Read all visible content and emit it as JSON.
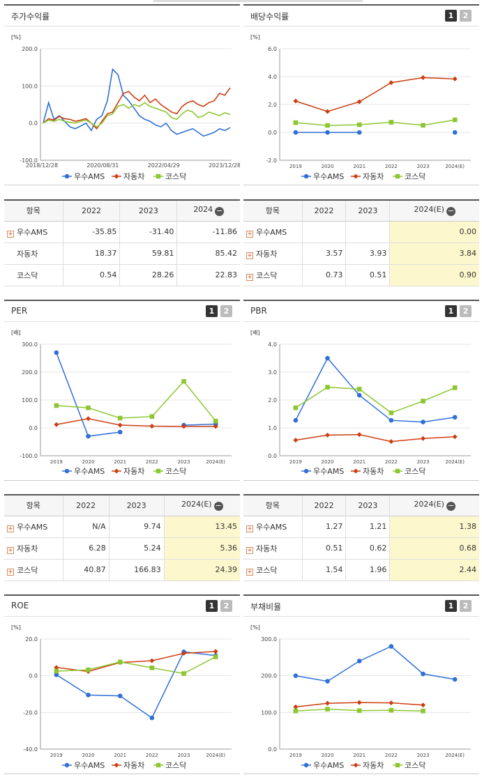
{
  "colors": {
    "ams": "#2f6fd6",
    "auto": "#cc3d10",
    "kosdaq": "#8cc630"
  },
  "legend": [
    "우수AMS",
    "자동차",
    "코스닥"
  ],
  "pagers": [
    "1",
    "2"
  ],
  "charts": {
    "price": {
      "title": "주가수익률",
      "unit": "[%]",
      "ylim": [
        -100,
        200
      ],
      "yticks": [
        "200.0",
        "100.0",
        "0.0",
        "-100.0"
      ],
      "xticks": [
        "2018/12/28",
        "2020/08/31",
        "2022/04/29",
        "2023/12/28"
      ]
    },
    "dividend": {
      "title": "배당수익률",
      "unit": "[%]",
      "ylim": [
        -2,
        6
      ],
      "yticks": [
        "6.0",
        "4.0",
        "2.0",
        "0.0",
        "-2.0"
      ],
      "xticks": [
        "2019",
        "2020",
        "2021",
        "2022",
        "2023",
        "2024(E)"
      ]
    },
    "per": {
      "title": "PER",
      "unit": "[배]",
      "ylim": [
        -100,
        300
      ],
      "yticks": [
        "300.0",
        "200.0",
        "100.0",
        "0.0",
        "-100.0"
      ],
      "xticks": [
        "2019",
        "2020",
        "2021",
        "2022",
        "2023",
        "2024(E)"
      ]
    },
    "pbr": {
      "title": "PBR",
      "unit": "[배]",
      "ylim": [
        0,
        4
      ],
      "yticks": [
        "4.0",
        "3.0",
        "2.0",
        "1.0",
        "0.0"
      ],
      "xticks": [
        "2019",
        "2020",
        "2021",
        "2022",
        "2023",
        "2024(E)"
      ]
    },
    "roe": {
      "title": "ROE",
      "unit": "[%]",
      "ylim": [
        -40,
        20
      ],
      "yticks": [
        "20.0",
        "0.0",
        "-20.0",
        "-40.0"
      ],
      "xticks": [
        "2019",
        "2020",
        "2021",
        "2022",
        "2023",
        "2024(E)"
      ]
    },
    "debt": {
      "title": "부채비율",
      "unit": "[%]",
      "ylim": [
        0,
        300
      ],
      "yticks": [
        "300.0",
        "200.0",
        "100.0",
        "0.0"
      ],
      "xticks": [
        "2019",
        "2020",
        "2021",
        "2022",
        "2023",
        "2024(E)"
      ]
    }
  },
  "chart_data": [
    {
      "type": "line",
      "title": "주가수익률",
      "ylabel": "[%]",
      "ylim": [
        -100,
        200
      ],
      "x_range": [
        "2018/12/28",
        "2024/06"
      ],
      "series": [
        {
          "name": "우수AMS",
          "values": [
            0,
            55,
            10,
            20,
            5,
            -10,
            -15,
            -8,
            0,
            -20,
            10,
            20,
            60,
            145,
            130,
            75,
            60,
            40,
            20,
            10,
            5,
            -5,
            -10,
            0,
            -20,
            -30,
            -25,
            -20,
            -15,
            -25,
            -35,
            -30,
            -25,
            -15,
            -20,
            -12
          ]
        },
        {
          "name": "자동차",
          "values": [
            0,
            12,
            8,
            18,
            12,
            10,
            5,
            8,
            12,
            0,
            -15,
            5,
            25,
            30,
            55,
            80,
            85,
            70,
            60,
            75,
            55,
            65,
            50,
            40,
            30,
            25,
            45,
            55,
            60,
            50,
            45,
            55,
            60,
            80,
            75,
            95
          ]
        },
        {
          "name": "코스닥",
          "values": [
            0,
            8,
            5,
            10,
            5,
            2,
            0,
            5,
            8,
            0,
            -10,
            0,
            20,
            25,
            45,
            50,
            40,
            50,
            45,
            55,
            45,
            40,
            35,
            30,
            15,
            10,
            25,
            35,
            30,
            15,
            20,
            30,
            25,
            20,
            28,
            23
          ]
        }
      ]
    },
    {
      "type": "line",
      "title": "배당수익률",
      "ylabel": "[%]",
      "ylim": [
        -2,
        6
      ],
      "categories": [
        "2019",
        "2020",
        "2021",
        "2022",
        "2023",
        "2024(E)"
      ],
      "series": [
        {
          "name": "우수AMS",
          "values": [
            0,
            0,
            0,
            null,
            null,
            0
          ]
        },
        {
          "name": "자동차",
          "values": [
            2.25,
            1.5,
            2.2,
            3.57,
            3.93,
            3.84
          ]
        },
        {
          "name": "코스닥",
          "values": [
            0.7,
            0.5,
            0.55,
            0.73,
            0.51,
            0.9
          ]
        }
      ]
    },
    {
      "type": "line",
      "title": "PER",
      "ylabel": "[배]",
      "ylim": [
        -100,
        300
      ],
      "categories": [
        "2019",
        "2020",
        "2021",
        "2022",
        "2023",
        "2024(E)"
      ],
      "series": [
        {
          "name": "우수AMS",
          "values": [
            270,
            -30,
            -15,
            null,
            9.74,
            13.45
          ]
        },
        {
          "name": "자동차",
          "values": [
            12,
            33,
            10,
            6.28,
            5.24,
            5.36
          ]
        },
        {
          "name": "코스닥",
          "values": [
            80,
            72,
            35,
            40.87,
            166.83,
            24.39
          ]
        }
      ]
    },
    {
      "type": "line",
      "title": "PBR",
      "ylabel": "[배]",
      "ylim": [
        0,
        4
      ],
      "categories": [
        "2019",
        "2020",
        "2021",
        "2022",
        "2023",
        "2024(E)"
      ],
      "series": [
        {
          "name": "우수AMS",
          "values": [
            1.27,
            3.5,
            2.17,
            1.27,
            1.21,
            1.38
          ]
        },
        {
          "name": "자동차",
          "values": [
            0.56,
            0.74,
            0.76,
            0.51,
            0.62,
            0.68
          ]
        },
        {
          "name": "코스닥",
          "values": [
            1.72,
            2.46,
            2.39,
            1.54,
            1.96,
            2.44
          ]
        }
      ]
    },
    {
      "type": "line",
      "title": "ROE",
      "ylabel": "[%]",
      "ylim": [
        -40,
        20
      ],
      "categories": [
        "2019",
        "2020",
        "2021",
        "2022",
        "2023",
        "2024(E)"
      ],
      "series": [
        {
          "name": "우수AMS",
          "values": [
            0.5,
            -10.5,
            -11,
            -23,
            13,
            11
          ]
        },
        {
          "name": "자동차",
          "values": [
            4.5,
            2.3,
            7.2,
            8.2,
            12.2,
            13.2
          ]
        },
        {
          "name": "코스닥",
          "values": [
            2.5,
            3.2,
            7.5,
            4.3,
            1.2,
            10.3
          ]
        }
      ]
    },
    {
      "type": "line",
      "title": "부채비율",
      "ylabel": "[%]",
      "ylim": [
        0,
        300
      ],
      "categories": [
        "2019",
        "2020",
        "2021",
        "2022",
        "2023",
        "2024(E)"
      ],
      "series": [
        {
          "name": "우수AMS",
          "values": [
            200,
            185,
            240,
            280,
            205,
            190
          ]
        },
        {
          "name": "자동차",
          "values": [
            115,
            125,
            127,
            126,
            120,
            null
          ]
        },
        {
          "name": "코스닥",
          "values": [
            104,
            109,
            105,
            106,
            104,
            null
          ]
        }
      ]
    }
  ],
  "tables": {
    "price": {
      "headers": [
        "항목",
        "2022",
        "2023",
        "2024"
      ],
      "rows": [
        {
          "label": "우수AMS",
          "plus": true,
          "values": [
            "-35.85",
            "-31.40",
            "-11.86"
          ]
        },
        {
          "label": "자동차",
          "plus": false,
          "values": [
            "18.37",
            "59.81",
            "85.42"
          ]
        },
        {
          "label": "코스닥",
          "plus": false,
          "values": [
            "0.54",
            "28.26",
            "22.83"
          ]
        }
      ]
    },
    "dividend": {
      "headers": [
        "항목",
        "2022",
        "2023",
        "2024(E)"
      ],
      "rows": [
        {
          "label": "우수AMS",
          "plus": true,
          "values": [
            "",
            "",
            "0.00"
          ]
        },
        {
          "label": "자동차",
          "plus": true,
          "values": [
            "3.57",
            "3.93",
            "3.84"
          ]
        },
        {
          "label": "코스닥",
          "plus": true,
          "values": [
            "0.73",
            "0.51",
            "0.90"
          ]
        }
      ]
    },
    "per": {
      "headers": [
        "항목",
        "2022",
        "2023",
        "2024(E)"
      ],
      "rows": [
        {
          "label": "우수AMS",
          "plus": true,
          "values": [
            "N/A",
            "9.74",
            "13.45"
          ]
        },
        {
          "label": "자동차",
          "plus": true,
          "values": [
            "6.28",
            "5.24",
            "5.36"
          ]
        },
        {
          "label": "코스닥",
          "plus": true,
          "values": [
            "40.87",
            "166.83",
            "24.39"
          ]
        }
      ]
    },
    "pbr": {
      "headers": [
        "항목",
        "2022",
        "2023",
        "2024(E)"
      ],
      "rows": [
        {
          "label": "우수AMS",
          "plus": true,
          "values": [
            "1.27",
            "1.21",
            "1.38"
          ]
        },
        {
          "label": "자동차",
          "plus": true,
          "values": [
            "0.51",
            "0.62",
            "0.68"
          ]
        },
        {
          "label": "코스닥",
          "plus": true,
          "values": [
            "1.54",
            "1.96",
            "2.44"
          ]
        }
      ]
    }
  }
}
